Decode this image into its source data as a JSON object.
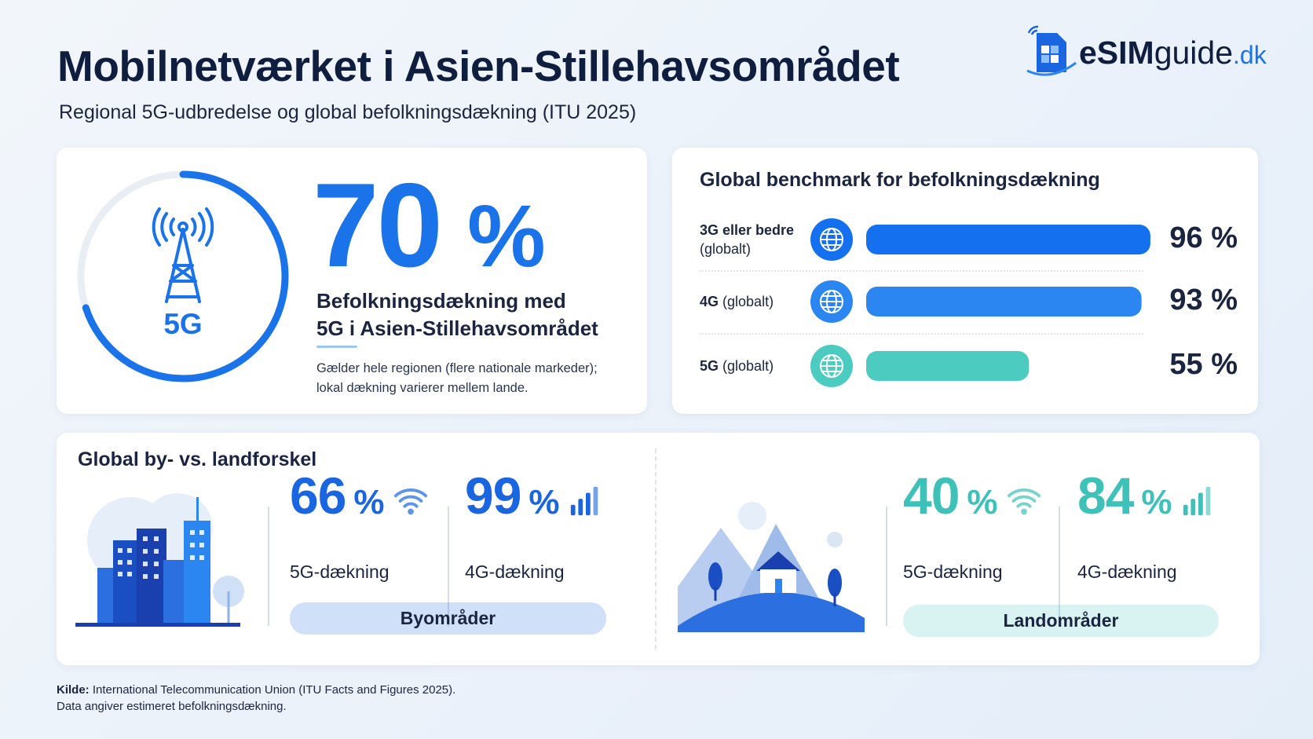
{
  "header": {
    "title": "Mobilnetværket i Asien-Stillehavsområdet",
    "subtitle": "Regional 5G-udbredelse og global befolkningsdækning (ITU 2025)"
  },
  "logo": {
    "part1": "eSIM",
    "part2": "guide",
    "part3": ".dk"
  },
  "hero": {
    "icon_label": "5G",
    "value": 70,
    "unit": "%",
    "color": "#1a73e8",
    "heading": [
      "Befolkningsdækning med",
      "5G i Asien-Stillehavsområdet"
    ],
    "note": [
      "Gælder hele regionen (flere nationale markeder);",
      "lokal dækning varierer mellem lande."
    ]
  },
  "benchmark": {
    "title": "Global benchmark for befolkningsdækning",
    "rows": [
      {
        "label": "3G eller bedre",
        "scope": "(globalt)",
        "value": 96,
        "value_label": "96 %",
        "color": "#1570ef"
      },
      {
        "label": "4G",
        "scope": "(globalt)",
        "value": 93,
        "value_label": "93 %",
        "color": "#2b86f2"
      },
      {
        "label": "5G",
        "scope": "(globalt)",
        "value": 55,
        "value_label": "55 %",
        "color": "#4ccbc1"
      }
    ]
  },
  "gap": {
    "title": "Global by- vs. landforskel",
    "areas": [
      {
        "name": "Byområder",
        "color": "#1a66e0",
        "stats": [
          {
            "value": 66,
            "unit": "%",
            "label": "5G-dækning"
          },
          {
            "value": 99,
            "unit": "%",
            "label": "4G-dækning"
          }
        ]
      },
      {
        "name": "Landområder",
        "color": "#3ec1b8",
        "stats": [
          {
            "value": 40,
            "unit": "%",
            "label": "5G-dækning"
          },
          {
            "value": 84,
            "unit": "%",
            "label": "4G-dækning"
          }
        ]
      }
    ]
  },
  "footer": {
    "source_label": "Kilde:",
    "source": "International Telecommunication Union (ITU Facts and Figures 2025).",
    "note": "Data angiver estimeret befolkningsdækning."
  }
}
